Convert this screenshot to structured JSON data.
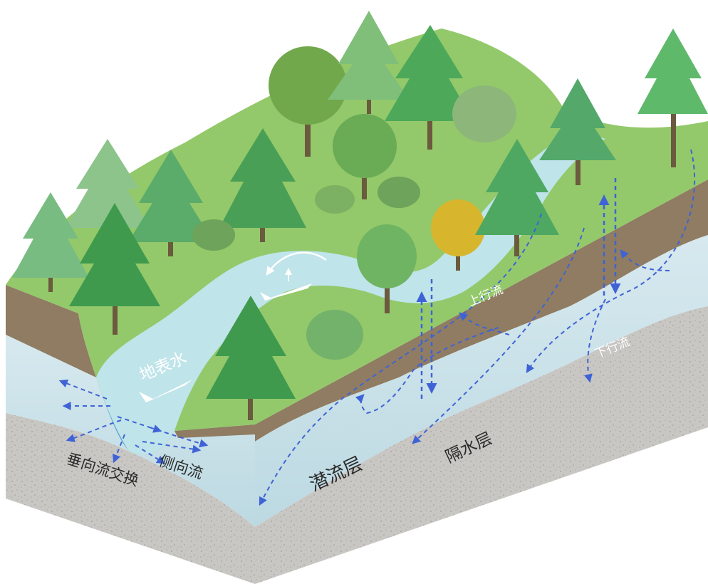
{
  "labels": {
    "surface_water": "地表水",
    "upwelling": "上行流",
    "downwelling": "下行流",
    "hyporheic_zone": "潜流层",
    "aquitard": "隔水层",
    "vertical_exchange": "垂向流交换",
    "lateral_flow": "侧向流"
  },
  "colors": {
    "grass": "#93c96a",
    "soil": "#8f7c62",
    "hyporheic": "#cfe3ea",
    "aquitard": "#c9c9c6",
    "river": "#bfe4ea",
    "arrow": "#3f63d6",
    "tree_dark": "#3f9a4e",
    "tree_light": "#62b86a",
    "tree_yellow": "#d7b62e"
  }
}
